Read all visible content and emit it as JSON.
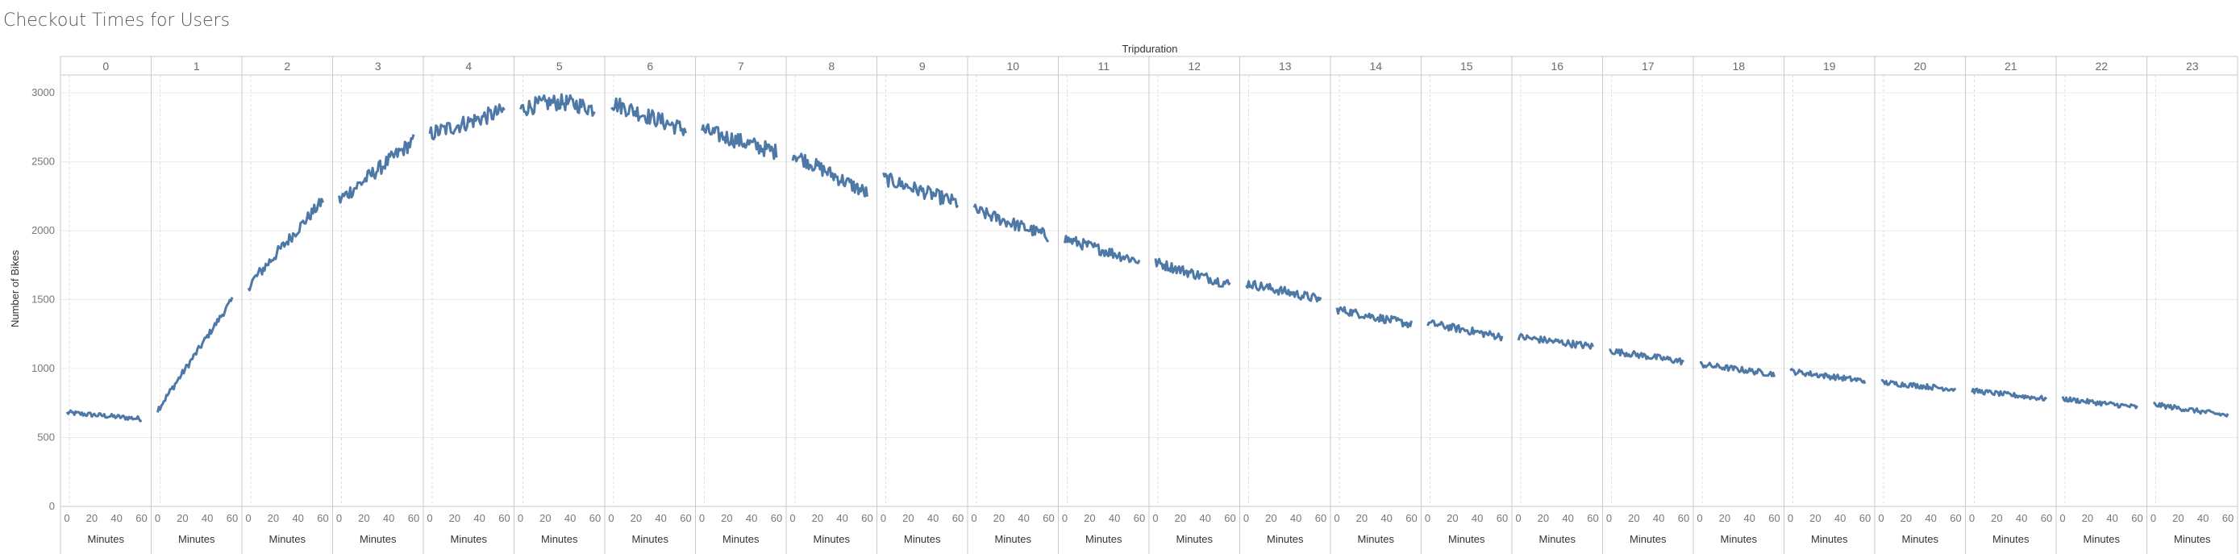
{
  "title": "Checkout Times for Users",
  "colors": {
    "line": "#4e79a7",
    "grid": "#ececec",
    "divider": "#c8c8c8",
    "ref": "#dcdcdc"
  },
  "chart_data": {
    "type": "line",
    "title": "Checkout Times for Users",
    "column_field": "Tripduration",
    "columns": [
      "0",
      "1",
      "2",
      "3",
      "4",
      "5",
      "6",
      "7",
      "8",
      "9",
      "10",
      "11",
      "12",
      "13",
      "14",
      "15",
      "16",
      "17",
      "18",
      "19",
      "20",
      "21",
      "22",
      "23"
    ],
    "xlabel": "Minutes",
    "ylabel": "Number of Bikes",
    "x_ticks": [
      0,
      20,
      40,
      60
    ],
    "xlim": [
      0,
      60
    ],
    "y_ticks": [
      0,
      500,
      1000,
      1500,
      2000,
      2500,
      3000
    ],
    "ylim": [
      0,
      3100
    ],
    "grid": true,
    "series_shape": [
      {
        "start": 680,
        "end": 635
      },
      {
        "start": 700,
        "end": 1500
      },
      {
        "start": 1600,
        "end": 2220
      },
      {
        "start": 2220,
        "end": 2650
      },
      {
        "start": 2700,
        "end": 2870
      },
      {
        "start": 2880,
        "end": 2880
      },
      {
        "start": 2930,
        "end": 2730
      },
      {
        "start": 2730,
        "end": 2570
      },
      {
        "start": 2560,
        "end": 2270
      },
      {
        "start": 2380,
        "end": 2200
      },
      {
        "start": 2150,
        "end": 1960
      },
      {
        "start": 1940,
        "end": 1780
      },
      {
        "start": 1770,
        "end": 1610
      },
      {
        "start": 1620,
        "end": 1500
      },
      {
        "start": 1430,
        "end": 1320
      },
      {
        "start": 1330,
        "end": 1230
      },
      {
        "start": 1230,
        "end": 1160
      },
      {
        "start": 1130,
        "end": 1050
      },
      {
        "start": 1030,
        "end": 960
      },
      {
        "start": 980,
        "end": 910
      },
      {
        "start": 900,
        "end": 850
      },
      {
        "start": 840,
        "end": 780
      },
      {
        "start": 780,
        "end": 720
      },
      {
        "start": 740,
        "end": 660
      }
    ]
  }
}
